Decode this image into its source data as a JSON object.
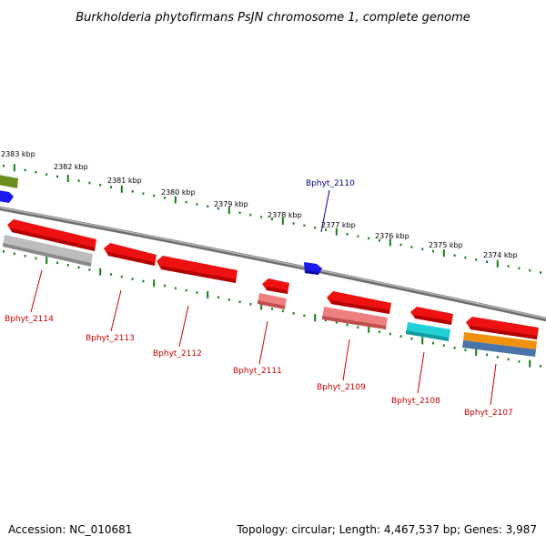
{
  "title": "Burkholderia phytofirmans PsJN chromosome 1, complete genome",
  "accession": "Accession: NC_010681",
  "summary": "Topology: circular; Length: 4,467,537 bp; Genes: 3,987",
  "colors": {
    "backbone": "#8a8a8a",
    "tick": "#1a7a1a",
    "forward_label": "#00008b",
    "reverse_label": "#cc0000"
  },
  "scale_labels": [
    "2383 kbp",
    "2382 kbp",
    "2381 kbp",
    "2380 kbp",
    "2379 kbp",
    "2378 kbp",
    "2377 kbp",
    "2376 kbp",
    "2375 kbp",
    "2374 kbp"
  ],
  "genes": [
    {
      "label": "Bphyt_2114",
      "strand": "reverse",
      "color": "#ee1111",
      "cog_color": "#bdbdbd"
    },
    {
      "label": "Bphyt_2113",
      "strand": "reverse",
      "color": "#ee1111"
    },
    {
      "label": "Bphyt_2112",
      "strand": "reverse",
      "color": "#ee1111"
    },
    {
      "label": "Bphyt_2111",
      "strand": "reverse",
      "color": "#ee1111",
      "cog_color": "#ee8080"
    },
    {
      "label": "Bphyt_2110",
      "strand": "forward",
      "color": "#1a1aee"
    },
    {
      "label": "Bphyt_2109",
      "strand": "reverse",
      "color": "#ee1111",
      "cog_color": "#ee8080"
    },
    {
      "label": "Bphyt_2108",
      "strand": "reverse",
      "color": "#ee1111",
      "cog_color": "#22d0d8"
    },
    {
      "label": "Bphyt_2107",
      "strand": "reverse",
      "color": "#ee1111",
      "cog_color": "#f0920f",
      "cog_color_2": "#4a74a8"
    }
  ]
}
